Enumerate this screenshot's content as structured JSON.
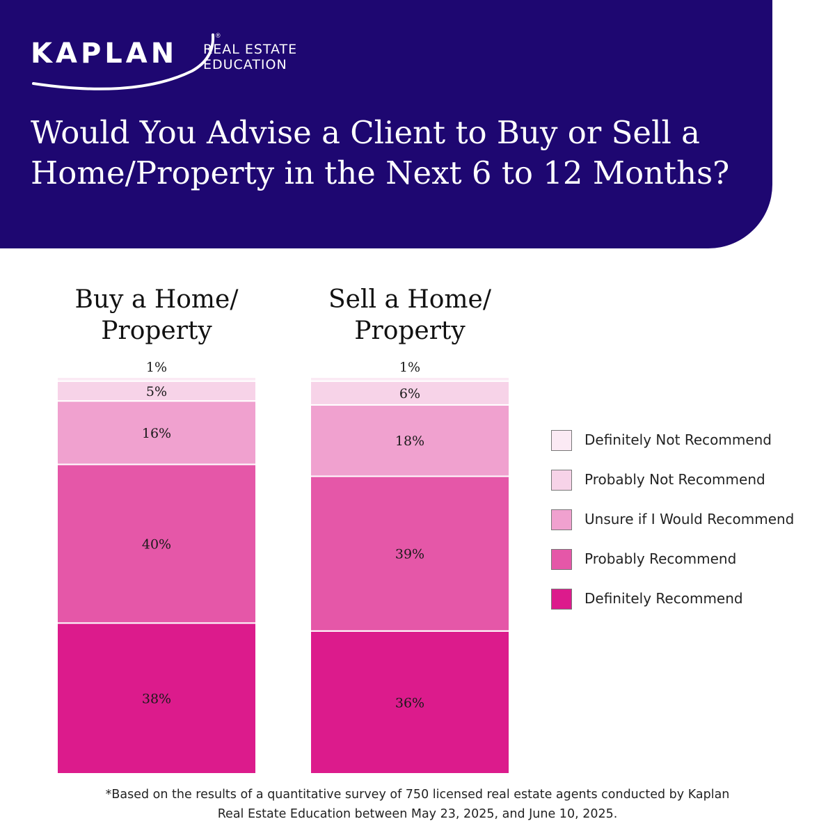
{
  "brand": {
    "logo_word": "KAPLAN",
    "logo_registered": "®",
    "logo_sub_line1": "REAL ESTATE",
    "logo_sub_line2": "EDUCATION"
  },
  "title": "Would You Advise a Client to Buy or Sell a Home/Property in the Next 6 to 12 Months?",
  "colors": {
    "header_bg": "#1e0771",
    "definitely_not": "#fbeaf4",
    "probably_not": "#f7d3e8",
    "unsure": "#f0a1cf",
    "probably": "#e557a8",
    "definitely": "#dc1b8c"
  },
  "legend": [
    {
      "label": "Definitely Not Recommend",
      "color": "#fbeaf4"
    },
    {
      "label": "Probably Not Recommend",
      "color": "#f7d3e8"
    },
    {
      "label": "Unsure if I Would Recommend",
      "color": "#f0a1cf"
    },
    {
      "label": "Probably Recommend",
      "color": "#e557a8"
    },
    {
      "label": "Definitely Recommend",
      "color": "#dc1b8c"
    }
  ],
  "chart_data": {
    "type": "bar",
    "stacked": true,
    "unit": "%",
    "categories": [
      {
        "title_lines": [
          "Buy a Home/",
          "Property"
        ]
      },
      {
        "title_lines": [
          "Sell a Home/",
          "Property"
        ]
      }
    ],
    "series": [
      {
        "name": "Definitely Recommend",
        "values": [
          38,
          36
        ]
      },
      {
        "name": "Probably Recommend",
        "values": [
          40,
          39
        ]
      },
      {
        "name": "Unsure if I Would Recommend",
        "values": [
          16,
          18
        ]
      },
      {
        "name": "Probably Not Recommend",
        "values": [
          5,
          6
        ]
      },
      {
        "name": "Definitely Not Recommend",
        "values": [
          1,
          1
        ]
      }
    ],
    "data_labels": [
      [
        "38%",
        "36%"
      ],
      [
        "40%",
        "39%"
      ],
      [
        "16%",
        "18%"
      ],
      [
        "5%",
        "6%"
      ],
      [
        "1%",
        "1%"
      ]
    ],
    "legend_position": "right"
  },
  "footnote": {
    "line1": "*Based on the results of a quantitative survey of 750 licensed real estate agents conducted by Kaplan",
    "line2": "Real Estate Education between May 23, 2025, and June 10, 2025."
  }
}
